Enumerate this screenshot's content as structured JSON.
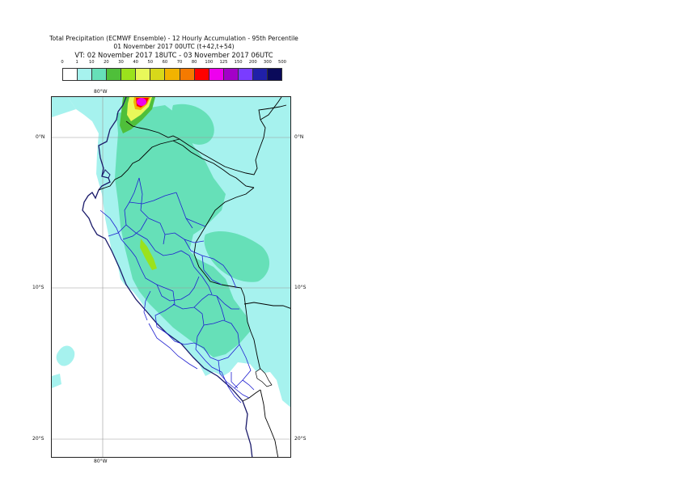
{
  "title": {
    "line1": "Total Precipitation (ECMWF Ensemble) - 12 Hourly Accumulation - 95th Percentile",
    "line2": "01 November 2017 00UTC (t+42,t+54)",
    "line3": "VT: 02 November 2017 18UTC - 03 November 2017 06UTC"
  },
  "legend": {
    "labels": [
      "0",
      "1",
      "10",
      "20",
      "30",
      "40",
      "50",
      "60",
      "70",
      "80",
      "100",
      "125",
      "150",
      "200",
      "300",
      "500"
    ],
    "colors": [
      "#ffffff",
      "#a6f2ee",
      "#66e0b8",
      "#4fbf3a",
      "#9be21c",
      "#e8f85a",
      "#d8d81a",
      "#f2b300",
      "#f57a00",
      "#ff0000",
      "#ee00ee",
      "#a300c8",
      "#7a3cff",
      "#2020a8",
      "#0a0a5a"
    ]
  },
  "map": {
    "lon_labels": {
      "top": "80°W",
      "bottom": "80°W"
    },
    "lat_labels": {
      "equator": "0°N",
      "s10": "10°S",
      "s20": "20°S"
    },
    "colors": {
      "light_cyan": "#a6f2ee",
      "medium_green": "#66e0b8",
      "green": "#4fbf3a",
      "yellow_green": "#9be21c",
      "yellow": "#e8f85a",
      "orange": "#f2b300",
      "magenta": "#ee00ee",
      "red": "#ff0000",
      "coast": "#1a1a6a",
      "border": "#000000",
      "region_border": "#1f1fd0",
      "grid": "#999999"
    }
  }
}
